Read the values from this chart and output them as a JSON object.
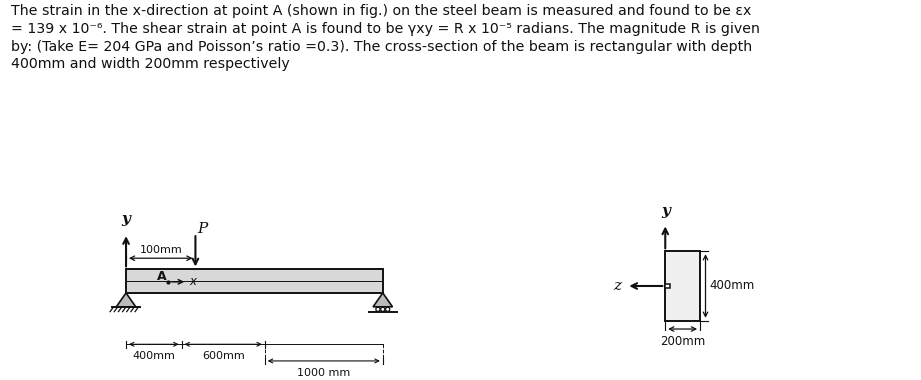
{
  "bg_color": "#ffffff",
  "line_color": "#111111",
  "text_color": "#111111",
  "title_lines": [
    "The strain in the x-direction at point A (shown in fig.) on the steel beam is measured and found to be εx",
    "= 139 x 10⁻⁶. The shear strain at point A is found to be γxy = R x 10⁻⁵ radians. The magnitude R is given",
    "by: (Take E= 204 GPa and Poisson’s ratio =0.3). The cross-section of the beam is rectangular with depth",
    "400mm and width 200mm respectively"
  ],
  "font_size_title": 10.2,
  "font_size_label": 8.5,
  "font_size_axis": 10.0
}
